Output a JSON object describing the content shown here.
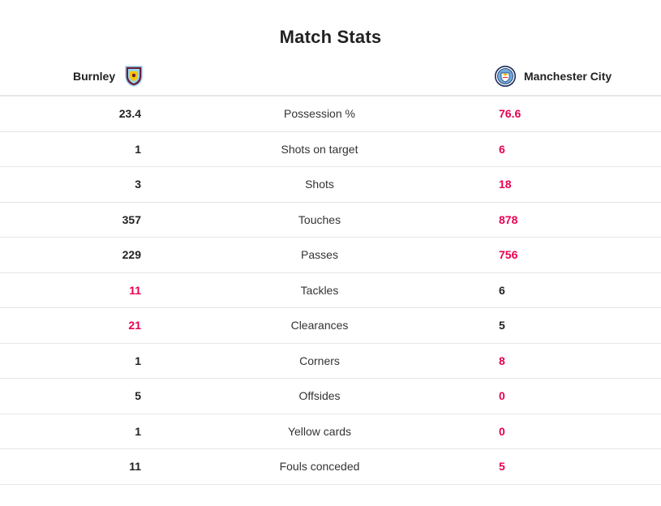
{
  "title": "Match Stats",
  "home_team": {
    "name": "Burnley",
    "crest_icon": "burnley-crest-icon"
  },
  "away_team": {
    "name": "Manchester City",
    "crest_icon": "man-city-crest-icon"
  },
  "colors": {
    "highlight": "#e90052",
    "text": "#222222",
    "divider": "#e6e6e6"
  },
  "stats": [
    {
      "label": "Possession %",
      "home": "23.4",
      "away": "76.6",
      "leader": "away"
    },
    {
      "label": "Shots on target",
      "home": "1",
      "away": "6",
      "leader": "away"
    },
    {
      "label": "Shots",
      "home": "3",
      "away": "18",
      "leader": "away"
    },
    {
      "label": "Touches",
      "home": "357",
      "away": "878",
      "leader": "away"
    },
    {
      "label": "Passes",
      "home": "229",
      "away": "756",
      "leader": "away"
    },
    {
      "label": "Tackles",
      "home": "11",
      "away": "6",
      "leader": "home"
    },
    {
      "label": "Clearances",
      "home": "21",
      "away": "5",
      "leader": "home"
    },
    {
      "label": "Corners",
      "home": "1",
      "away": "8",
      "leader": "away"
    },
    {
      "label": "Offsides",
      "home": "5",
      "away": "0",
      "leader": "away"
    },
    {
      "label": "Yellow cards",
      "home": "1",
      "away": "0",
      "leader": "away"
    },
    {
      "label": "Fouls conceded",
      "home": "11",
      "away": "5",
      "leader": "away"
    }
  ]
}
